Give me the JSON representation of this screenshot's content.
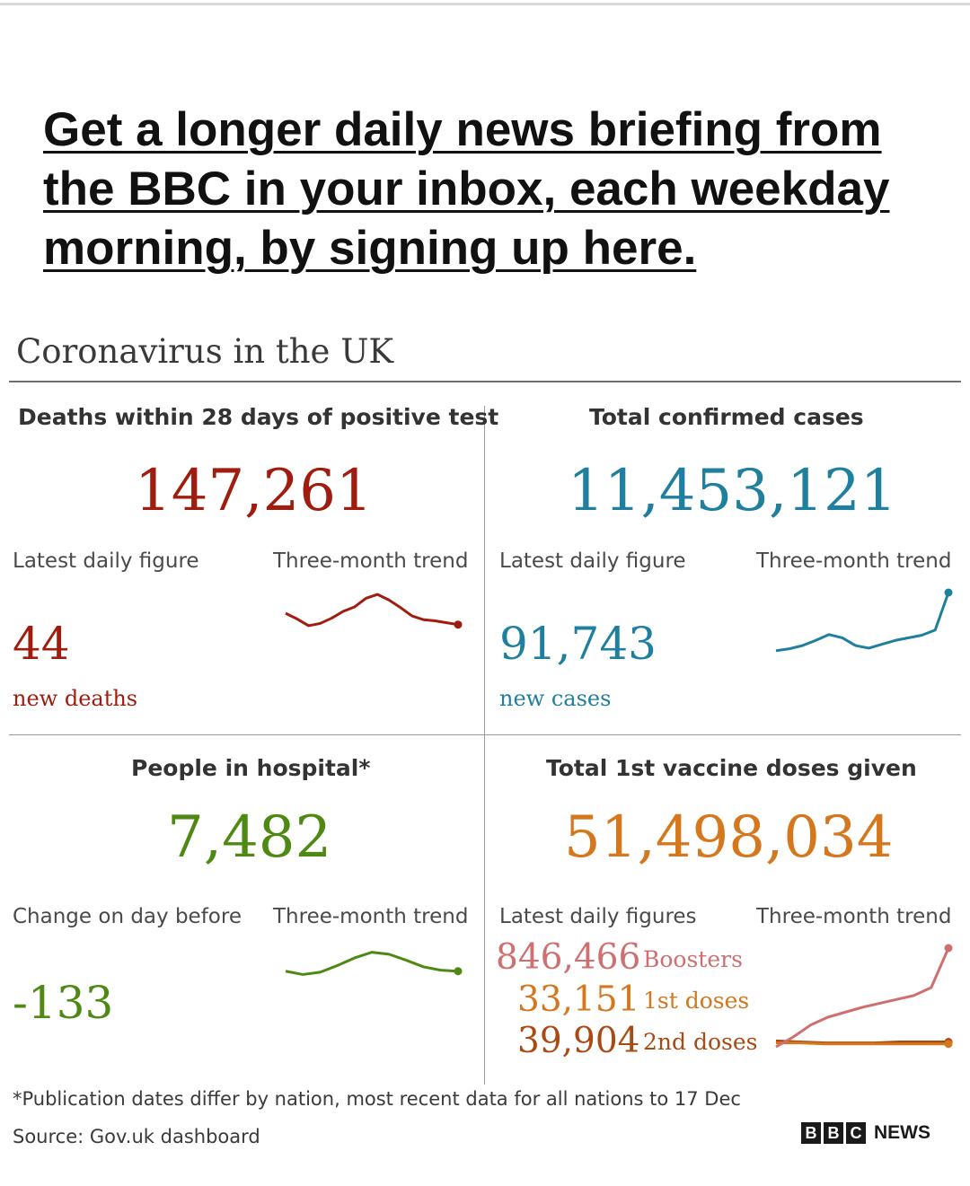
{
  "headline_link": "Get a longer daily news briefing from the BBC in your inbox, each weekday morning, by signing up here.",
  "title": "Coronavirus in the UK",
  "panels": {
    "deaths": {
      "heading": "Deaths within 28 days of positive test",
      "total": "147,261",
      "latest_label": "Latest daily figure",
      "trend_label": "Three-month trend",
      "latest_value": "44",
      "latest_unit": "new deaths",
      "color": "#a01c0f"
    },
    "cases": {
      "heading": "Total confirmed cases",
      "total": "11,453,121",
      "latest_label": "Latest daily figure",
      "trend_label": "Three-month trend",
      "latest_value": "91,743",
      "latest_unit": "new cases",
      "color": "#1f7f9e"
    },
    "hospital": {
      "heading": "People in hospital*",
      "total": "7,482",
      "latest_label": "Change on day before",
      "trend_label": "Three-month trend",
      "latest_value": "-133",
      "color": "#4e8a13"
    },
    "vaccine": {
      "heading": "Total 1st vaccine doses given",
      "total": "51,498,034",
      "latest_label": "Latest daily figures",
      "trend_label": "Three-month trend",
      "boosters_value": "846,466",
      "boosters_label": "Boosters",
      "first_value": "33,151",
      "first_label": "1st doses",
      "second_value": "39,904",
      "second_label": "2nd doses",
      "color": "#d4771d",
      "boosters_color": "#cf6f6f",
      "first_color": "#d4771d",
      "second_color": "#aa4a12"
    }
  },
  "footnote": "*Publication dates differ by nation, most recent data for all nations to 17 Dec",
  "source": "Source: Gov.uk dashboard",
  "logo": {
    "b1": "B",
    "b2": "B",
    "b3": "C",
    "news": "NEWS"
  },
  "sparklines": {
    "deaths": [
      0.45,
      0.3,
      0.12,
      0.18,
      0.32,
      0.5,
      0.62,
      0.85,
      0.95,
      0.8,
      0.6,
      0.38,
      0.28,
      0.25,
      0.2,
      0.15
    ],
    "cases": [
      0.1,
      0.13,
      0.18,
      0.26,
      0.35,
      0.3,
      0.18,
      0.14,
      0.2,
      0.26,
      0.3,
      0.34,
      0.42,
      1.0
    ],
    "hospital": [
      0.25,
      0.15,
      0.22,
      0.42,
      0.65,
      0.82,
      0.76,
      0.58,
      0.38,
      0.28,
      0.25
    ],
    "boosters": [
      0.0,
      0.1,
      0.22,
      0.3,
      0.35,
      0.4,
      0.44,
      0.48,
      0.52,
      0.6,
      1.0
    ],
    "first_doses": [
      0.04,
      0.04,
      0.03,
      0.03,
      0.03,
      0.03,
      0.03,
      0.03
    ],
    "second_doses": [
      0.06,
      0.05,
      0.04,
      0.04,
      0.04,
      0.05,
      0.05,
      0.05
    ]
  }
}
